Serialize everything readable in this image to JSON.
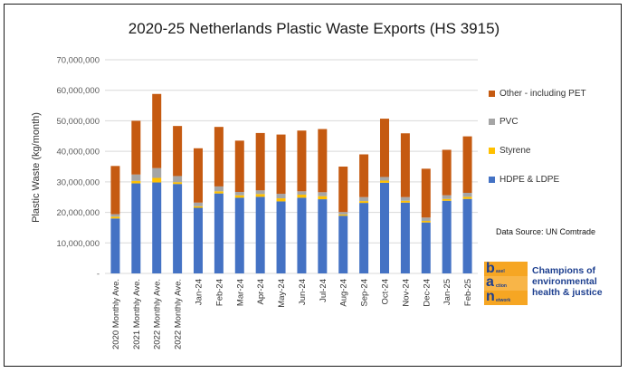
{
  "chart_data": {
    "type": "bar",
    "stacked": true,
    "title": "2020-25 Netherlands Plastic Waste Exports (HS 3915)",
    "xlabel": "",
    "ylabel": "Plastic Waste (kg/month)",
    "ylim": [
      0,
      70000000
    ],
    "y_ticks": [
      "-",
      "10,000,000",
      "20,000,000",
      "30,000,000",
      "40,000,000",
      "50,000,000",
      "60,000,000",
      "70,000,000"
    ],
    "grid": true,
    "legend_position": "right",
    "categories": [
      "2020 Monthly Ave.",
      "2021 Monthly Ave.",
      "2022 Monthly Ave.",
      "2022 Monthly Ave.",
      "Jan-24",
      "Feb-24",
      "Mar-24",
      "Apr-24",
      "May-24",
      "Jun-24",
      "Jul-24",
      "Aug-24",
      "Sep-24",
      "Oct-24",
      "Nov-24",
      "Dec-24",
      "Jan-25",
      "Feb-25"
    ],
    "series": [
      {
        "name": "HDPE & LDPE",
        "color": "#4472c4",
        "values": [
          18000000,
          29500000,
          29800000,
          29300000,
          21500000,
          26200000,
          24800000,
          25100000,
          23600000,
          24800000,
          24300000,
          18900000,
          23100000,
          29700000,
          23200000,
          16700000,
          23800000,
          24400000
        ]
      },
      {
        "name": "Styrene",
        "color": "#ffc000",
        "values": [
          600000,
          800000,
          1500000,
          600000,
          500000,
          700000,
          800000,
          900000,
          1000000,
          1000000,
          1000000,
          400000,
          600000,
          700000,
          600000,
          500000,
          600000,
          700000
        ]
      },
      {
        "name": "PVC",
        "color": "#a5a5a5",
        "values": [
          800000,
          2100000,
          3200000,
          2000000,
          1200000,
          1600000,
          1100000,
          1200000,
          1500000,
          1100000,
          1300000,
          800000,
          1300000,
          1200000,
          1200000,
          1100000,
          1200000,
          1300000
        ]
      },
      {
        "name": "Other - including PET",
        "color": "#c55a11",
        "values": [
          15800000,
          17600000,
          24300000,
          16400000,
          17800000,
          19500000,
          16800000,
          18800000,
          19400000,
          19900000,
          20700000,
          14900000,
          14000000,
          19100000,
          20900000,
          16000000,
          14900000,
          18500000
        ]
      }
    ]
  },
  "source_note": "Data Source: UN Comtrade",
  "logo": {
    "letters": [
      "b",
      "a",
      "n"
    ],
    "words": [
      "asel",
      "ction",
      "etwork"
    ],
    "tagline": "Champions of environmental health & justice"
  }
}
